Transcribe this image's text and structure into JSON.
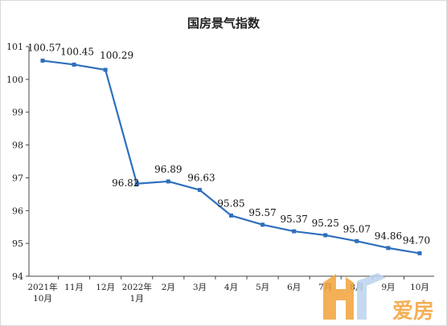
{
  "chart_data": {
    "type": "line",
    "title": "国房景气指数",
    "categories": [
      [
        "2021年",
        "10月"
      ],
      [
        "11月"
      ],
      [
        "12月"
      ],
      [
        "2022年",
        "1月"
      ],
      [
        "2月"
      ],
      [
        "3月"
      ],
      [
        "4月"
      ],
      [
        "5月"
      ],
      [
        "6月"
      ],
      [
        "7月"
      ],
      [
        "8月"
      ],
      [
        "9月"
      ],
      [
        "10月"
      ]
    ],
    "series": [
      {
        "values": [
          100.57,
          100.45,
          100.29,
          96.82,
          96.89,
          96.63,
          95.85,
          95.57,
          95.37,
          95.25,
          95.07,
          94.86,
          94.7
        ],
        "color": "#2e6fbd"
      }
    ],
    "ylim": [
      94,
      101
    ],
    "yticks": [
      94,
      95,
      96,
      97,
      98,
      99,
      100,
      101
    ],
    "grid": false,
    "legend": "none"
  },
  "watermark": {
    "text": "爱房",
    "colors": [
      "#f2a33a",
      "#bcd3ee"
    ]
  }
}
